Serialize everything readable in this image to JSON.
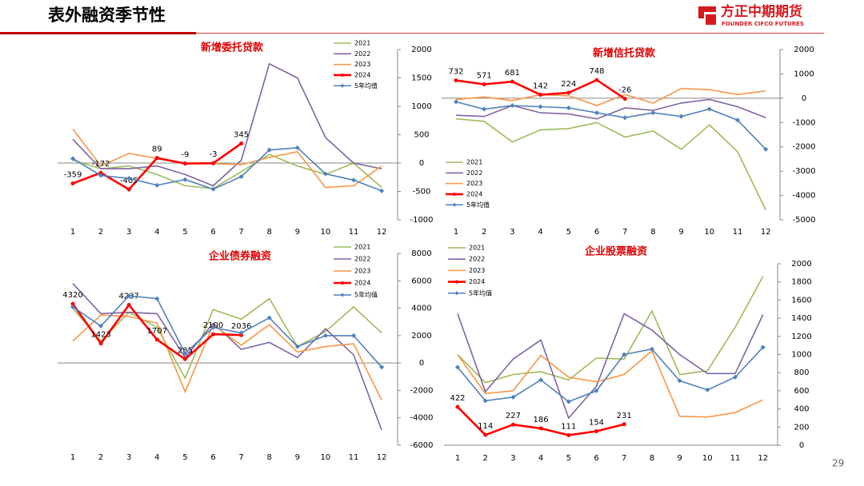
{
  "page": {
    "title": "表外融资季节性",
    "logo": "方正中期期货",
    "logo_en": "FOUNDER CIFCO FUTURES",
    "page_number": "29"
  },
  "chart_data": [
    {
      "type": "line",
      "title": "新增委托贷款",
      "categories": [
        1,
        2,
        3,
        4,
        5,
        6,
        7,
        8,
        9,
        10,
        11,
        12
      ],
      "ylim": [
        -1000,
        2000
      ],
      "yticks": [
        -1000,
        -500,
        0,
        500,
        1000,
        1500,
        2000
      ],
      "legend": "upper right",
      "series": [
        {
          "name": "2021",
          "color": "#9bbb59",
          "values": [
            50,
            -100,
            -50,
            -200,
            -400,
            -450,
            -150,
            150,
            -50,
            -200,
            0,
            -430
          ]
        },
        {
          "name": "2022",
          "color": "#8064a2",
          "values": [
            420,
            -100,
            -100,
            -50,
            -200,
            -400,
            50,
            1750,
            1500,
            450,
            0,
            -100
          ]
        },
        {
          "name": "2023",
          "color": "#f79646",
          "values": [
            600,
            -50,
            170,
            80,
            0,
            -10,
            -30,
            100,
            200,
            -430,
            -400,
            -50
          ]
        },
        {
          "name": "2024",
          "color": "#ff0000",
          "marker": "circle",
          "data_labels": true,
          "values": [
            -359,
            -172,
            -465,
            89,
            -9,
            -3,
            345,
            null,
            null,
            null,
            null,
            null
          ]
        },
        {
          "name": "5年均值",
          "color": "#4f81bd",
          "marker": "diamond",
          "values": [
            80,
            -220,
            -270,
            -390,
            -290,
            -460,
            -240,
            230,
            270,
            -190,
            -300,
            -490
          ]
        }
      ]
    },
    {
      "type": "line",
      "title": "新增信托贷款",
      "categories": [
        1,
        2,
        3,
        4,
        5,
        6,
        7,
        8,
        9,
        10,
        11,
        12
      ],
      "ylim": [
        -5000,
        2000
      ],
      "yticks": [
        -5000,
        -4000,
        -3000,
        -2000,
        -1000,
        0,
        1000,
        2000
      ],
      "legend": "lower left",
      "series": [
        {
          "name": "2021",
          "color": "#9bbb59",
          "values": [
            -850,
            -950,
            -1800,
            -1300,
            -1250,
            -1000,
            -1600,
            -1350,
            -2100,
            -1100,
            -2200,
            -4600
          ]
        },
        {
          "name": "2022",
          "color": "#8064a2",
          "values": [
            -700,
            -750,
            -300,
            -600,
            -650,
            -850,
            -400,
            -500,
            -200,
            -50,
            -350,
            -800
          ]
        },
        {
          "name": "2023",
          "color": "#f79646",
          "values": [
            -50,
            50,
            -100,
            150,
            100,
            -300,
            150,
            -200,
            400,
            350,
            150,
            300
          ]
        },
        {
          "name": "2024",
          "color": "#ff0000",
          "marker": "circle",
          "data_labels": true,
          "values": [
            732,
            571,
            681,
            142,
            224,
            748,
            -26,
            null,
            null,
            null,
            null,
            null
          ]
        },
        {
          "name": "5年均值",
          "color": "#4f81bd",
          "marker": "diamond",
          "values": [
            -150,
            -450,
            -300,
            -350,
            -400,
            -600,
            -800,
            -600,
            -750,
            -450,
            -900,
            -2100
          ]
        }
      ]
    },
    {
      "type": "line",
      "title": "企业债券融资",
      "categories": [
        1,
        2,
        3,
        4,
        5,
        6,
        7,
        8,
        9,
        10,
        11,
        12
      ],
      "ylim": [
        -6000,
        8000
      ],
      "yticks": [
        -6000,
        -4000,
        -2000,
        0,
        2000,
        4000,
        6000,
        8000
      ],
      "legend": "upper right",
      "series": [
        {
          "name": "2021",
          "color": "#9bbb59",
          "values": [
            4000,
            1600,
            3700,
            2600,
            -1100,
            3900,
            3200,
            4700,
            1200,
            2300,
            4100,
            2200
          ]
        },
        {
          "name": "2022",
          "color": "#8064a2",
          "values": [
            5800,
            3600,
            3700,
            3600,
            400,
            2900,
            1000,
            1500,
            400,
            2500,
            600,
            -4900
          ]
        },
        {
          "name": "2023",
          "color": "#f79646",
          "values": [
            1600,
            3500,
            3400,
            2900,
            -2100,
            2800,
            1300,
            2800,
            800,
            1200,
            1400,
            -2700
          ]
        },
        {
          "name": "2024",
          "color": "#ff0000",
          "marker": "circle",
          "data_labels": true,
          "values": [
            4320,
            1423,
            4237,
            1707,
            285,
            2100,
            2036,
            null,
            null,
            null,
            null,
            null
          ]
        },
        {
          "name": "5年均值",
          "color": "#4f81bd",
          "marker": "diamond",
          "values": [
            4100,
            2700,
            4900,
            4700,
            700,
            2600,
            2200,
            3300,
            1200,
            2000,
            2000,
            -300
          ]
        }
      ]
    },
    {
      "type": "line",
      "title": "企业股票融资",
      "categories": [
        1,
        2,
        3,
        4,
        5,
        6,
        7,
        8,
        9,
        10,
        11,
        12
      ],
      "ylim": [
        0,
        2000
      ],
      "yticks": [
        0,
        200,
        400,
        600,
        800,
        1000,
        1200,
        1400,
        1600,
        1800,
        2000
      ],
      "legend": "upper left",
      "series": [
        {
          "name": "2021",
          "color": "#9bbb59",
          "values": [
            1000,
            690,
            780,
            810,
            720,
            960,
            950,
            1480,
            780,
            820,
            1300,
            1860
          ]
        },
        {
          "name": "2022",
          "color": "#8064a2",
          "values": [
            1450,
            590,
            950,
            1160,
            300,
            650,
            1450,
            1270,
            1000,
            790,
            790,
            1440
          ]
        },
        {
          "name": "2023",
          "color": "#f79646",
          "values": [
            1000,
            570,
            600,
            990,
            750,
            700,
            780,
            1040,
            320,
            310,
            360,
            500
          ]
        },
        {
          "name": "2024",
          "color": "#ff0000",
          "marker": "circle",
          "data_labels": true,
          "values": [
            422,
            114,
            227,
            186,
            111,
            154,
            231,
            null,
            null,
            null,
            null,
            null
          ]
        },
        {
          "name": "5年均值",
          "color": "#4f81bd",
          "marker": "diamond",
          "values": [
            860,
            490,
            530,
            720,
            480,
            600,
            1000,
            1060,
            710,
            610,
            750,
            1080
          ]
        }
      ]
    }
  ]
}
